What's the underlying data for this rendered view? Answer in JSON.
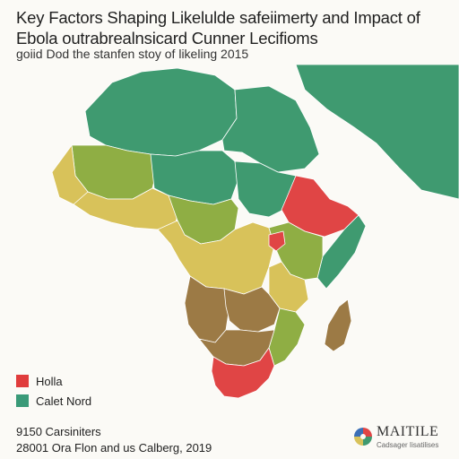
{
  "header": {
    "title": "Key Factors Shaping Likelulde safeiimerty and Impact of Ebola outrabrealnsicard Cunner Lecifioms",
    "subtitle": "goiid Dod the stanfen stoy of likeling 2015"
  },
  "legend": {
    "items": [
      {
        "label": "Holla",
        "color": "#e03c3c"
      },
      {
        "label": "Calet Nord",
        "color": "#3a9a78"
      }
    ]
  },
  "footer": {
    "line1": "9150 Carsiniters",
    "line2": "28001 Ora Flon and us Calberg, 2019"
  },
  "brand": {
    "name": "MAITILE",
    "sub": "Cadsager Iisatilises"
  },
  "colors": {
    "ocean": "#fbfaf6",
    "green": "#3f9a70",
    "olive": "#8fae44",
    "yellow": "#d8c25a",
    "brown": "#9c7a45",
    "red": "#e04545",
    "border": "#ffffff"
  }
}
